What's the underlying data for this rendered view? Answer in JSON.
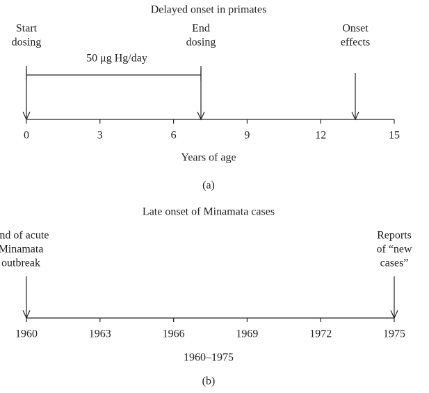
{
  "panel_a": {
    "title": "Delayed onset in primates",
    "events": [
      {
        "lines": [
          "Start",
          "dosing"
        ]
      },
      {
        "lines": [
          "End",
          "dosing"
        ]
      },
      {
        "lines": [
          "Onset",
          "effects"
        ]
      }
    ],
    "dose_label": "50 μg Hg/day",
    "ticks": [
      "0",
      "3",
      "6",
      "9",
      "12",
      "15"
    ],
    "axis_label": "Years of age",
    "caption": "(a)"
  },
  "panel_b": {
    "title": "Late onset of Minamata cases",
    "events": [
      {
        "lines": [
          "End of acute",
          "Minamata",
          "outbreak"
        ]
      },
      {
        "lines": [
          "Reports",
          "of “new",
          "cases”"
        ]
      }
    ],
    "ticks": [
      "1960",
      "1963",
      "1966",
      "1969",
      "1972",
      "1975"
    ],
    "axis_label": "1960–1975",
    "caption": "(b)"
  }
}
